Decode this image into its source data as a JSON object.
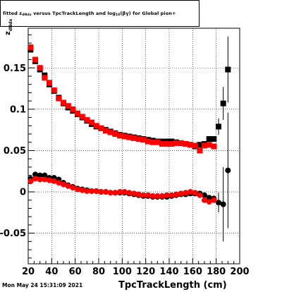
{
  "chart_data": {
    "type": "scatter",
    "title": "Fitted z_dNdx versus TpcTrackLength and log10(βγ) for Global pion+",
    "title_parts": {
      "pre": "fitted  z",
      "sub1": "dNdx",
      "mid": "  versus  TpcTrackLength and log",
      "sub2": "10",
      "post": "(βγ) for Global pion+"
    },
    "xlabel": "TpcTrackLength (cm)",
    "ylabel_main": "z",
    "ylabel_sub": "dNdx",
    "timestamp": "Mon May 24 15:31:09 2021",
    "xlim": [
      20,
      200
    ],
    "ylim": [
      -0.087,
      0.198
    ],
    "x_ticks": [
      20,
      40,
      60,
      80,
      100,
      120,
      140,
      160,
      180,
      200
    ],
    "x_tick_labels": [
      "20",
      "40",
      "60",
      "80",
      "100",
      "120",
      "140",
      "160",
      "180",
      "200"
    ],
    "y_ticks": [
      -0.05,
      0,
      0.05,
      0.1,
      0.15
    ],
    "y_tick_labels": [
      "-0.05",
      "0",
      "0.05",
      "0.1",
      "0.15"
    ],
    "grid": true,
    "series": [
      {
        "color": "#000000",
        "marker": "square",
        "points": [
          [
            22,
            0.172
          ],
          [
            26,
            0.158
          ],
          [
            30,
            0.148
          ],
          [
            34,
            0.141
          ],
          [
            38,
            0.13
          ],
          [
            42,
            0.122
          ],
          [
            46,
            0.114
          ],
          [
            50,
            0.107
          ],
          [
            54,
            0.102
          ],
          [
            58,
            0.098
          ],
          [
            62,
            0.094
          ],
          [
            66,
            0.09
          ],
          [
            70,
            0.086
          ],
          [
            74,
            0.082
          ],
          [
            78,
            0.079
          ],
          [
            82,
            0.077
          ],
          [
            86,
            0.075
          ],
          [
            90,
            0.073
          ],
          [
            94,
            0.071
          ],
          [
            98,
            0.069
          ],
          [
            102,
            0.068
          ],
          [
            106,
            0.067
          ],
          [
            110,
            0.066
          ],
          [
            114,
            0.065
          ],
          [
            118,
            0.064
          ],
          [
            122,
            0.063
          ],
          [
            126,
            0.062
          ],
          [
            130,
            0.061
          ],
          [
            134,
            0.061
          ],
          [
            138,
            0.061
          ],
          [
            142,
            0.061
          ],
          [
            146,
            0.06
          ],
          [
            150,
            0.059
          ],
          [
            154,
            0.058
          ],
          [
            158,
            0.057
          ],
          [
            162,
            0.055
          ],
          [
            166,
            0.057
          ],
          [
            170,
            0.058
          ],
          [
            174,
            0.064
          ],
          [
            178,
            0.064
          ]
        ]
      },
      {
        "color": "#ff0000",
        "marker": "square",
        "points": [
          [
            22,
            0.175
          ],
          [
            26,
            0.16
          ],
          [
            30,
            0.15
          ],
          [
            34,
            0.138
          ],
          [
            38,
            0.132
          ],
          [
            42,
            0.123
          ],
          [
            46,
            0.113
          ],
          [
            50,
            0.108
          ],
          [
            54,
            0.104
          ],
          [
            58,
            0.1
          ],
          [
            62,
            0.095
          ],
          [
            66,
            0.091
          ],
          [
            70,
            0.087
          ],
          [
            74,
            0.084
          ],
          [
            78,
            0.08
          ],
          [
            82,
            0.077
          ],
          [
            86,
            0.074
          ],
          [
            90,
            0.072
          ],
          [
            94,
            0.07
          ],
          [
            98,
            0.068
          ],
          [
            102,
            0.067
          ],
          [
            106,
            0.066
          ],
          [
            110,
            0.065
          ],
          [
            114,
            0.064
          ],
          [
            118,
            0.063
          ],
          [
            122,
            0.061
          ],
          [
            126,
            0.06
          ],
          [
            130,
            0.06
          ],
          [
            134,
            0.058
          ],
          [
            138,
            0.058
          ],
          [
            142,
            0.058
          ],
          [
            146,
            0.059
          ],
          [
            150,
            0.059
          ],
          [
            154,
            0.058
          ],
          [
            158,
            0.057
          ],
          [
            162,
            0.056
          ],
          [
            166,
            0.05
          ],
          [
            170,
            0.056
          ],
          [
            174,
            0.057
          ],
          [
            178,
            0.055
          ]
        ]
      },
      {
        "color": "#000000",
        "marker": "square",
        "points_with_error": [
          [
            182,
            0.079,
            0.01
          ],
          [
            186,
            0.107,
            0.02
          ],
          [
            190,
            0.148,
            0.04
          ]
        ]
      },
      {
        "color": "#000000",
        "marker": "circle",
        "points": [
          [
            22,
            0.016
          ],
          [
            26,
            0.021
          ],
          [
            30,
            0.02
          ],
          [
            34,
            0.02
          ],
          [
            38,
            0.017
          ],
          [
            42,
            0.017
          ],
          [
            46,
            0.015
          ],
          [
            50,
            0.011
          ],
          [
            54,
            0.008
          ],
          [
            58,
            0.006
          ],
          [
            62,
            0.004
          ],
          [
            66,
            0.003
          ],
          [
            70,
            0.002
          ],
          [
            74,
            0.001
          ],
          [
            78,
            0.001
          ],
          [
            82,
            0.0
          ],
          [
            86,
            0.0
          ],
          [
            90,
            -0.001
          ],
          [
            94,
            -0.001
          ],
          [
            98,
            -0.001
          ],
          [
            102,
            -0.001
          ],
          [
            106,
            -0.002
          ],
          [
            110,
            -0.003
          ],
          [
            114,
            -0.004
          ],
          [
            118,
            -0.005
          ],
          [
            122,
            -0.005
          ],
          [
            126,
            -0.006
          ],
          [
            130,
            -0.006
          ],
          [
            134,
            -0.006
          ],
          [
            138,
            -0.006
          ],
          [
            142,
            -0.005
          ],
          [
            146,
            -0.004
          ],
          [
            150,
            -0.003
          ],
          [
            154,
            -0.003
          ],
          [
            158,
            -0.002
          ],
          [
            162,
            -0.002
          ],
          [
            166,
            -0.002
          ],
          [
            170,
            -0.004
          ],
          [
            174,
            -0.007
          ],
          [
            178,
            -0.008
          ]
        ]
      },
      {
        "color": "#ff0000",
        "marker": "circle",
        "points": [
          [
            22,
            0.013
          ],
          [
            26,
            0.016
          ],
          [
            30,
            0.015
          ],
          [
            34,
            0.015
          ],
          [
            38,
            0.014
          ],
          [
            42,
            0.013
          ],
          [
            46,
            0.011
          ],
          [
            50,
            0.009
          ],
          [
            54,
            0.007
          ],
          [
            58,
            0.005
          ],
          [
            62,
            0.003
          ],
          [
            66,
            0.002
          ],
          [
            70,
            0.001
          ],
          [
            74,
            0.001
          ],
          [
            78,
            0.001
          ],
          [
            82,
            0.0
          ],
          [
            86,
            0.0
          ],
          [
            90,
            -0.001
          ],
          [
            94,
            -0.001
          ],
          [
            98,
            0.0
          ],
          [
            102,
            0.0
          ],
          [
            106,
            -0.001
          ],
          [
            110,
            -0.002
          ],
          [
            114,
            -0.003
          ],
          [
            118,
            -0.004
          ],
          [
            122,
            -0.004
          ],
          [
            126,
            -0.005
          ],
          [
            130,
            -0.005
          ],
          [
            134,
            -0.005
          ],
          [
            138,
            -0.004
          ],
          [
            142,
            -0.004
          ],
          [
            146,
            -0.003
          ],
          [
            150,
            -0.002
          ],
          [
            154,
            -0.001
          ],
          [
            158,
            0.0
          ],
          [
            162,
            -0.001
          ],
          [
            166,
            -0.004
          ],
          [
            170,
            -0.01
          ],
          [
            174,
            -0.012
          ],
          [
            178,
            -0.01
          ]
        ]
      },
      {
        "color": "#000000",
        "marker": "circle",
        "points_with_error": [
          [
            182,
            -0.013,
            0.012
          ],
          [
            186,
            -0.015,
            0.045
          ],
          [
            190,
            0.026,
            0.07
          ]
        ]
      }
    ]
  }
}
